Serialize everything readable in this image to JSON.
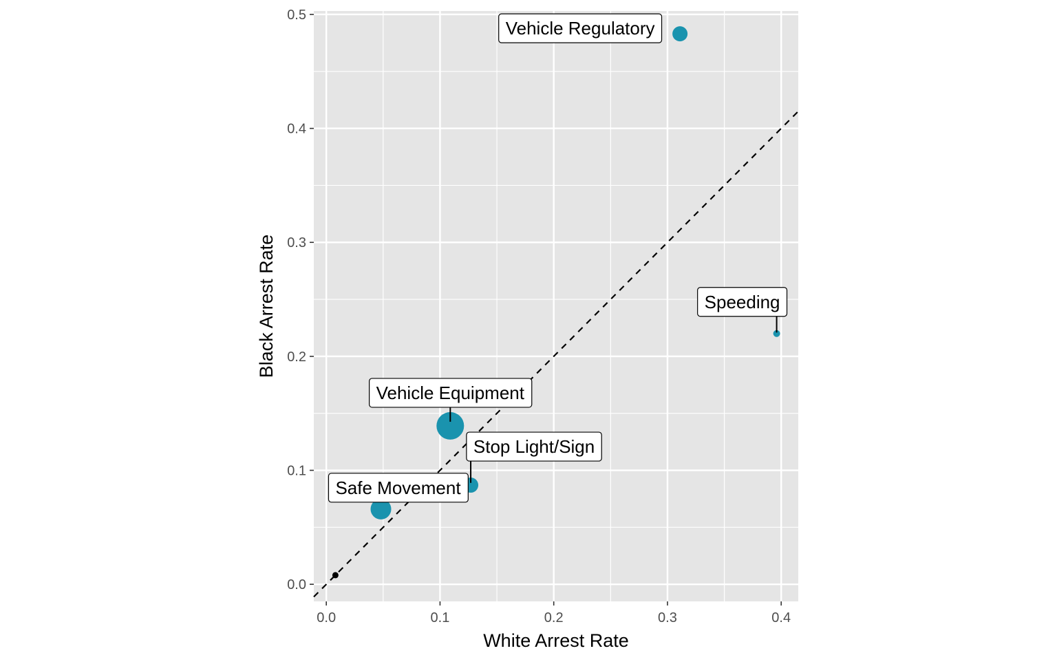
{
  "chart_data": {
    "type": "scatter",
    "title": "",
    "xlabel": "White Arrest Rate",
    "ylabel": "Black Arrest Rate",
    "xlim": [
      -0.011,
      0.415
    ],
    "ylim": [
      -0.015,
      0.503
    ],
    "x_ticks": [
      0.0,
      0.1,
      0.2,
      0.3,
      0.4
    ],
    "x_tick_labels": [
      "0.0",
      "0.1",
      "0.2",
      "0.3",
      "0.4"
    ],
    "y_ticks": [
      0.0,
      0.1,
      0.2,
      0.3,
      0.4,
      0.5
    ],
    "y_tick_labels": [
      "0.0",
      "0.1",
      "0.2",
      "0.3",
      "0.4",
      "0.5"
    ],
    "grid": true,
    "reference_line": {
      "slope": 1,
      "intercept": 0,
      "style": "dashed",
      "color": "#000000"
    },
    "colors": {
      "panel": "#e5e5e5",
      "grid": "#ffffff",
      "point": "#1a93ae",
      "small_point": "#000000"
    },
    "points": [
      {
        "label": "Vehicle Regulatory",
        "x": 0.311,
        "y": 0.483,
        "size": "medium",
        "color": "#1a93ae"
      },
      {
        "label": "Speeding",
        "x": 0.396,
        "y": 0.22,
        "size": "small",
        "color": "#1a93ae"
      },
      {
        "label": "Vehicle Equipment",
        "x": 0.109,
        "y": 0.139,
        "size": "large",
        "color": "#1a93ae"
      },
      {
        "label": "Stop Light/Sign",
        "x": 0.127,
        "y": 0.087,
        "size": "medium",
        "color": "#1a93ae"
      },
      {
        "label": "Safe Movement",
        "x": 0.048,
        "y": 0.066,
        "size": "medium-large",
        "color": "#1a93ae"
      },
      {
        "label": "",
        "x": 0.008,
        "y": 0.008,
        "size": "tiny",
        "color": "#000000"
      }
    ]
  }
}
